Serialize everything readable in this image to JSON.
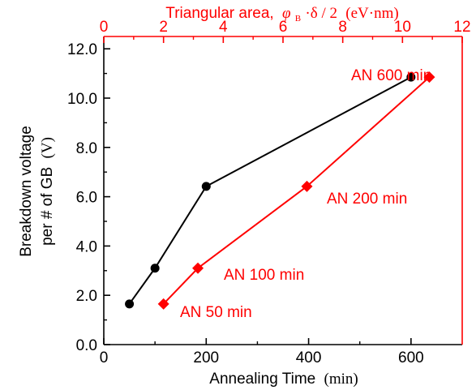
{
  "chart_data": {
    "type": "line",
    "x_axis_bottom": {
      "label": "Annealing Time",
      "unit": "(min)",
      "range": [
        0,
        700
      ],
      "ticks": [
        0,
        200,
        400,
        600
      ],
      "tick_labels": [
        "0",
        "200",
        "400",
        "600"
      ],
      "color": "#000000"
    },
    "x_axis_top": {
      "label": "Triangular area,",
      "formula_symbol": "φ",
      "formula_subscript": "B",
      "formula_rest": "·δ / 2",
      "unit": "(eV·nm)",
      "range": [
        0,
        12
      ],
      "ticks": [
        0,
        2,
        4,
        6,
        8,
        10,
        12
      ],
      "tick_labels": [
        "0",
        "2",
        "4",
        "6",
        "8",
        "10",
        "12"
      ],
      "color": "#ff0000"
    },
    "y_axis": {
      "label_line1": "Breakdown voltage",
      "label_line2": "per # of GB",
      "unit": "(V)",
      "range": [
        0,
        12.5
      ],
      "ticks": [
        0,
        2,
        4,
        6,
        8,
        10,
        12
      ],
      "tick_labels": [
        "0.0",
        "2.0",
        "4.0",
        "6.0",
        "8.0",
        "10.0",
        "12.0"
      ]
    },
    "grid": false,
    "series": [
      {
        "axis": "bottom",
        "color": "#000000",
        "marker": "circle",
        "points": [
          {
            "x": 50,
            "y": 1.65
          },
          {
            "x": 100,
            "y": 3.1
          },
          {
            "x": 200,
            "y": 6.42
          },
          {
            "x": 600,
            "y": 10.85
          }
        ]
      },
      {
        "axis": "top",
        "color": "#ff0000",
        "marker": "diamond",
        "points": [
          {
            "x": 2.0,
            "y": 1.65
          },
          {
            "x": 3.15,
            "y": 3.1
          },
          {
            "x": 6.8,
            "y": 6.42
          },
          {
            "x": 10.9,
            "y": 10.85
          }
        ]
      }
    ],
    "annotations": [
      {
        "text": "AN 50 min",
        "color": "#ff0000"
      },
      {
        "text": "AN 100 min",
        "color": "#ff0000"
      },
      {
        "text": "AN 200 min",
        "color": "#ff0000"
      },
      {
        "text": "AN 600 min",
        "color": "#ff0000"
      }
    ]
  }
}
